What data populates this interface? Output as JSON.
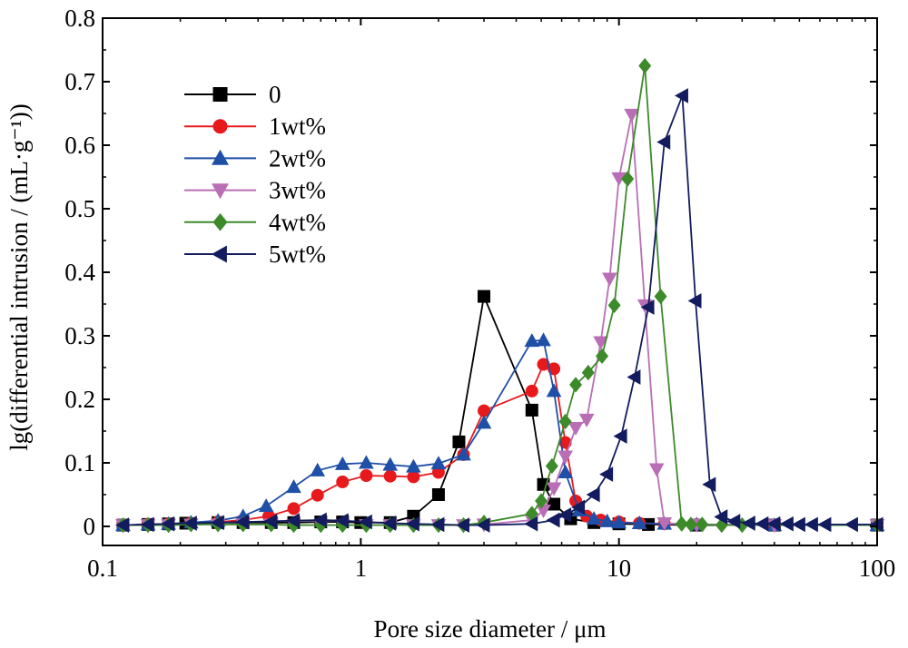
{
  "chart_data": {
    "type": "line",
    "title": "",
    "xlabel": "Pore size diameter / μm",
    "ylabel": "lg(differential intrusion / (mL·g⁻¹))",
    "xscale": "log",
    "xlim": [
      0.1,
      100
    ],
    "ylim": [
      -0.03,
      0.8
    ],
    "xticks": [
      0.1,
      1,
      10,
      100
    ],
    "xtick_labels": [
      "0.1",
      "1",
      "10",
      "100"
    ],
    "yticks": [
      0,
      0.1,
      0.2,
      0.3,
      0.4,
      0.5,
      0.6,
      0.7,
      0.8
    ],
    "ytick_labels": [
      "0",
      "0.1",
      "0.2",
      "0.3",
      "0.4",
      "0.5",
      "0.6",
      "0.7",
      "0.8"
    ],
    "grid": false,
    "legend": "upper-left",
    "series": [
      {
        "name": "0",
        "color": "#000000",
        "marker": "square",
        "points": [
          [
            0.12,
            0.002
          ],
          [
            0.15,
            0.003
          ],
          [
            0.18,
            0.004
          ],
          [
            0.21,
            0.005
          ],
          [
            0.28,
            0.006
          ],
          [
            0.35,
            0.006
          ],
          [
            0.45,
            0.006
          ],
          [
            0.55,
            0.006
          ],
          [
            0.7,
            0.007
          ],
          [
            0.85,
            0.007
          ],
          [
            1.0,
            0.006
          ],
          [
            1.3,
            0.006
          ],
          [
            1.6,
            0.016
          ],
          [
            2.0,
            0.05
          ],
          [
            2.4,
            0.133
          ],
          [
            3.0,
            0.362
          ],
          [
            4.6,
            0.183
          ],
          [
            5.1,
            0.066
          ],
          [
            5.6,
            0.035
          ],
          [
            6.5,
            0.012
          ],
          [
            8,
            0.006
          ],
          [
            10,
            0.004
          ],
          [
            13,
            0.003
          ],
          [
            20,
            0.002
          ],
          [
            40,
            0.002
          ],
          [
            100,
            0.002
          ]
        ]
      },
      {
        "name": "1wt%",
        "color": "#e8191c",
        "marker": "circle",
        "points": [
          [
            0.12,
            0.002
          ],
          [
            0.15,
            0.003
          ],
          [
            0.18,
            0.004
          ],
          [
            0.22,
            0.005
          ],
          [
            0.28,
            0.007
          ],
          [
            0.35,
            0.01
          ],
          [
            0.44,
            0.016
          ],
          [
            0.55,
            0.028
          ],
          [
            0.68,
            0.049
          ],
          [
            0.85,
            0.07
          ],
          [
            1.05,
            0.08
          ],
          [
            1.3,
            0.079
          ],
          [
            1.6,
            0.078
          ],
          [
            2.0,
            0.085
          ],
          [
            2.5,
            0.113
          ],
          [
            3.0,
            0.182
          ],
          [
            4.6,
            0.213
          ],
          [
            5.1,
            0.255
          ],
          [
            5.6,
            0.248
          ],
          [
            6.2,
            0.132
          ],
          [
            6.8,
            0.04
          ],
          [
            7.5,
            0.016
          ],
          [
            8.5,
            0.01
          ],
          [
            10,
            0.007
          ],
          [
            12,
            0.005
          ],
          [
            15,
            0.004
          ],
          [
            20,
            0.003
          ],
          [
            40,
            0.002
          ],
          [
            100,
            0.002
          ]
        ]
      },
      {
        "name": "2wt%",
        "color": "#1f4fa6",
        "marker": "triangle-up",
        "points": [
          [
            0.12,
            0.002
          ],
          [
            0.15,
            0.003
          ],
          [
            0.18,
            0.004
          ],
          [
            0.22,
            0.006
          ],
          [
            0.28,
            0.009
          ],
          [
            0.35,
            0.016
          ],
          [
            0.43,
            0.032
          ],
          [
            0.55,
            0.062
          ],
          [
            0.68,
            0.088
          ],
          [
            0.85,
            0.098
          ],
          [
            1.05,
            0.1
          ],
          [
            1.3,
            0.097
          ],
          [
            1.6,
            0.094
          ],
          [
            2.0,
            0.099
          ],
          [
            2.5,
            0.113
          ],
          [
            3.0,
            0.163
          ],
          [
            4.6,
            0.292
          ],
          [
            5.1,
            0.293
          ],
          [
            5.6,
            0.213
          ],
          [
            6.2,
            0.085
          ],
          [
            7,
            0.025
          ],
          [
            8,
            0.012
          ],
          [
            9,
            0.008
          ],
          [
            10,
            0.006
          ],
          [
            12,
            0.005
          ],
          [
            15,
            0.004
          ],
          [
            20,
            0.003
          ],
          [
            40,
            0.002
          ],
          [
            100,
            0.002
          ]
        ]
      },
      {
        "name": "3wt%",
        "color": "#b96eb5",
        "marker": "triangle-down",
        "points": [
          [
            0.12,
            0.002
          ],
          [
            0.15,
            0.002
          ],
          [
            0.18,
            0.002
          ],
          [
            0.22,
            0.003
          ],
          [
            0.28,
            0.003
          ],
          [
            0.35,
            0.003
          ],
          [
            0.45,
            0.003
          ],
          [
            0.55,
            0.002
          ],
          [
            0.7,
            0.002
          ],
          [
            0.85,
            0.002
          ],
          [
            1.05,
            0.002
          ],
          [
            1.3,
            0.002
          ],
          [
            1.6,
            0.002
          ],
          [
            2.0,
            0.002
          ],
          [
            2.5,
            0.002
          ],
          [
            3.0,
            0.003
          ],
          [
            4.6,
            0.01
          ],
          [
            5.1,
            0.025
          ],
          [
            5.6,
            0.06
          ],
          [
            6.2,
            0.11
          ],
          [
            6.8,
            0.155
          ],
          [
            7.5,
            0.168
          ],
          [
            8.5,
            0.29
          ],
          [
            9.2,
            0.39
          ],
          [
            10,
            0.548
          ],
          [
            11.2,
            0.648
          ],
          [
            12.6,
            0.348
          ],
          [
            14,
            0.09
          ],
          [
            15,
            0.005
          ],
          [
            20,
            0.003
          ],
          [
            40,
            0.002
          ],
          [
            100,
            0.002
          ]
        ]
      },
      {
        "name": "4wt%",
        "color": "#3d8a2a",
        "marker": "diamond",
        "points": [
          [
            0.12,
            0.002
          ],
          [
            0.15,
            0.002
          ],
          [
            0.18,
            0.002
          ],
          [
            0.22,
            0.003
          ],
          [
            0.28,
            0.003
          ],
          [
            0.35,
            0.003
          ],
          [
            0.45,
            0.003
          ],
          [
            0.55,
            0.002
          ],
          [
            0.7,
            0.002
          ],
          [
            0.85,
            0.002
          ],
          [
            1.05,
            0.002
          ],
          [
            1.3,
            0.002
          ],
          [
            1.6,
            0.002
          ],
          [
            2.0,
            0.002
          ],
          [
            2.5,
            0.002
          ],
          [
            3.0,
            0.006
          ],
          [
            4.6,
            0.02
          ],
          [
            5.0,
            0.04
          ],
          [
            5.5,
            0.095
          ],
          [
            6.2,
            0.165
          ],
          [
            6.8,
            0.223
          ],
          [
            7.6,
            0.242
          ],
          [
            8.6,
            0.268
          ],
          [
            9.6,
            0.348
          ],
          [
            10.8,
            0.547
          ],
          [
            12.6,
            0.725
          ],
          [
            14.5,
            0.362
          ],
          [
            17.5,
            0.004
          ],
          [
            19,
            0.003
          ],
          [
            21,
            0.003
          ],
          [
            25,
            0.002
          ],
          [
            30,
            0.002
          ],
          [
            100,
            0.002
          ]
        ]
      },
      {
        "name": "5wt%",
        "color": "#121c5e",
        "marker": "triangle-left",
        "points": [
          [
            0.12,
            0.002
          ],
          [
            0.15,
            0.003
          ],
          [
            0.18,
            0.004
          ],
          [
            0.22,
            0.005
          ],
          [
            0.28,
            0.006
          ],
          [
            0.35,
            0.007
          ],
          [
            0.45,
            0.008
          ],
          [
            0.55,
            0.009
          ],
          [
            0.7,
            0.01
          ],
          [
            0.85,
            0.009
          ],
          [
            1.05,
            0.007
          ],
          [
            1.3,
            0.005
          ],
          [
            1.6,
            0.004
          ],
          [
            2.0,
            0.003
          ],
          [
            2.5,
            0.002
          ],
          [
            3.0,
            0.002
          ],
          [
            4.6,
            0.004
          ],
          [
            5.6,
            0.01
          ],
          [
            6.2,
            0.018
          ],
          [
            7,
            0.03
          ],
          [
            8,
            0.05
          ],
          [
            9,
            0.082
          ],
          [
            10.2,
            0.142
          ],
          [
            11.5,
            0.235
          ],
          [
            13,
            0.345
          ],
          [
            15,
            0.605
          ],
          [
            17.6,
            0.678
          ],
          [
            19.8,
            0.355
          ],
          [
            22.5,
            0.066
          ],
          [
            25,
            0.015
          ],
          [
            28,
            0.008
          ],
          [
            32,
            0.005
          ],
          [
            36,
            0.004
          ],
          [
            40,
            0.004
          ],
          [
            45,
            0.004
          ],
          [
            50,
            0.003
          ],
          [
            56,
            0.003
          ],
          [
            63,
            0.003
          ],
          [
            80,
            0.003
          ],
          [
            100,
            0.003
          ]
        ]
      }
    ]
  }
}
